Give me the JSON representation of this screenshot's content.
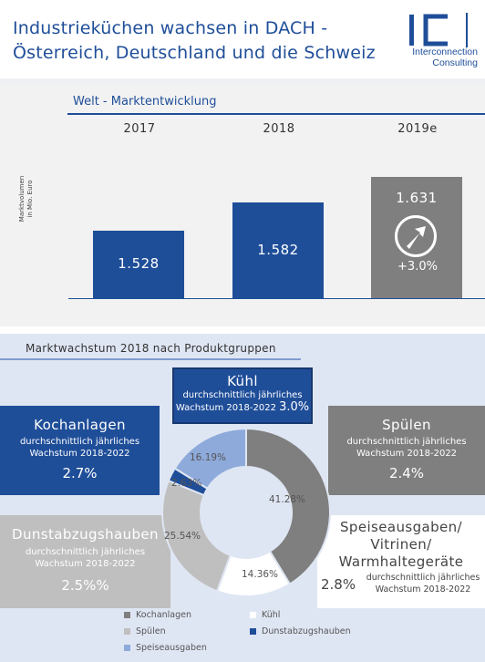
{
  "header": {
    "title_line1": "Industrieküchen wachsen in DACH -",
    "title_line2": "Österreich, Deutschland und die Schweiz",
    "logo_letters": "IC",
    "logo_line1": "Interconnection",
    "logo_line2": "Consulting"
  },
  "colors": {
    "primary_blue": "#1f4e99",
    "dark_gray": "#7f7f7f",
    "light_gray": "#bfbfbf",
    "light_blue": "#8eaadb",
    "white": "#ffffff"
  },
  "market": {
    "title": "Welt - Marktentwicklung",
    "ylabel_line1": "Marktvolumen",
    "ylabel_line2": "in Mio. Euro",
    "growth_label": "+3.0%",
    "growth_icon": "arrow-up-right-icon"
  },
  "chart_data": [
    {
      "type": "bar",
      "title": "Welt - Marktentwicklung",
      "categories": [
        "2017",
        "2018",
        "2019e"
      ],
      "values": [
        1528,
        1582,
        1631
      ],
      "value_labels": [
        "1.528",
        "1.582",
        "1.631"
      ],
      "ylabel": "Marktvolumen in Mio. Euro",
      "grid": false
    },
    {
      "type": "pie",
      "title": "Marktwachstum 2018 nach Produktgruppen",
      "donut": true,
      "legend_position": "bottom",
      "slices": [
        {
          "name": "Kochanlagen",
          "value": 41.28,
          "label": "41.28%",
          "color": "#7f7f7f"
        },
        {
          "name": "Kühl",
          "value": 14.36,
          "label": "14.36%",
          "color": "#ffffff"
        },
        {
          "name": "Spülen",
          "value": 25.54,
          "label": "25.54%",
          "color": "#bfbfbf"
        },
        {
          "name": "Dunstabzugshauben",
          "value": 2.63,
          "label": "2.63%",
          "color": "#1f4e99"
        },
        {
          "name": "Speiseausgaben",
          "value": 16.19,
          "label": "16.19%",
          "color": "#8eaadb"
        }
      ]
    }
  ],
  "growth_section": {
    "title": "Marktwachstum 2018 nach Produktgruppen",
    "kuehl": {
      "name": "Kühl",
      "sub1": "durchschnittlich jährliches",
      "sub2": "Wachstum 2018-2022",
      "pct": "3.0%"
    },
    "kochanlagen": {
      "name": "Kochanlagen",
      "sub1": "durchschnittlich jährliches",
      "sub2": "Wachstum 2018-2022",
      "pct": "2.7%"
    },
    "spuelen": {
      "name": "Spülen",
      "sub1": "durchschnittlich jährliches",
      "sub2": "Wachstum 2018-2022",
      "pct": "2.4%"
    },
    "dunst": {
      "name": "Dunstabzugshauben",
      "sub1": "durchschnittlich jährliches",
      "sub2": "Wachstum 2018-2022",
      "pct": "2.5%%"
    },
    "speise": {
      "name1": "Speiseausgaben/",
      "name2": "Vitrinen/",
      "name3": "Warmhaltegeräte",
      "sub1": "durchschnittlich jährliches",
      "sub2": "Wachstum 2018-2022",
      "pct": "2.8%"
    }
  }
}
